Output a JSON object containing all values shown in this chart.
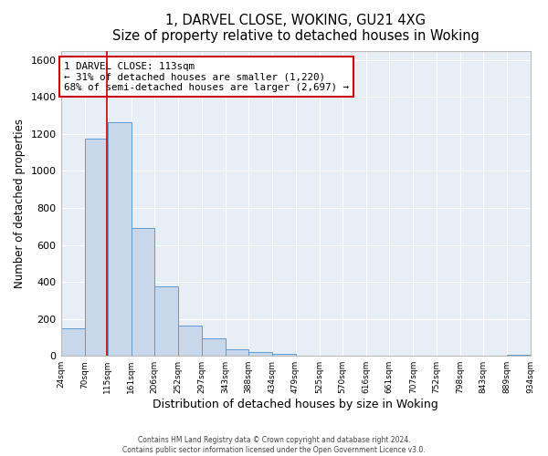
{
  "title": "1, DARVEL CLOSE, WOKING, GU21 4XG",
  "subtitle": "Size of property relative to detached houses in Woking",
  "xlabel": "Distribution of detached houses by size in Woking",
  "ylabel": "Number of detached properties",
  "bin_edges": [
    24,
    70,
    115,
    161,
    206,
    252,
    297,
    343,
    388,
    434,
    479,
    525,
    570,
    616,
    661,
    707,
    752,
    798,
    843,
    889,
    934
  ],
  "bin_counts": [
    148,
    1175,
    1265,
    690,
    375,
    163,
    93,
    38,
    22,
    10,
    0,
    0,
    0,
    0,
    0,
    0,
    0,
    0,
    0,
    8
  ],
  "bar_color": "#c8d8ea",
  "bar_edge_color": "#5b9bd5",
  "property_size": 113,
  "vline_color": "#cc0000",
  "annotation_text": "1 DARVEL CLOSE: 113sqm\n← 31% of detached houses are smaller (1,220)\n68% of semi-detached houses are larger (2,697) →",
  "annotation_box_color": "white",
  "annotation_box_edge_color": "#cc0000",
  "ylim": [
    0,
    1650
  ],
  "yticks": [
    0,
    200,
    400,
    600,
    800,
    1000,
    1200,
    1400,
    1600
  ],
  "bg_color": "#ffffff",
  "plot_bg_color": "#e8eef5",
  "grid_color": "#ffffff",
  "footer_text": "Contains HM Land Registry data © Crown copyright and database right 2024.\nContains public sector information licensed under the Open Government Licence v3.0.",
  "tick_labels": [
    "24sqm",
    "70sqm",
    "115sqm",
    "161sqm",
    "206sqm",
    "252sqm",
    "297sqm",
    "343sqm",
    "388sqm",
    "434sqm",
    "479sqm",
    "525sqm",
    "570sqm",
    "616sqm",
    "661sqm",
    "707sqm",
    "752sqm",
    "798sqm",
    "843sqm",
    "889sqm",
    "934sqm"
  ]
}
